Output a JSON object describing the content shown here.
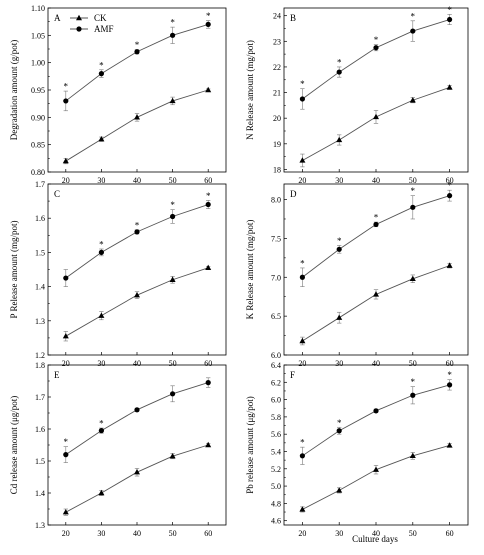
{
  "figure": {
    "xlabel": "Culture days",
    "legend": [
      {
        "label": "CK",
        "marker": "triangle"
      },
      {
        "label": "AMF",
        "marker": "circle"
      }
    ]
  },
  "chart_data": [
    {
      "type": "line",
      "panel": "A",
      "x": [
        20,
        30,
        40,
        50,
        60
      ],
      "ylabel": "Degradation amount (g/pot)",
      "ylim": [
        0.8,
        1.1
      ],
      "yticks": [
        0.8,
        0.85,
        0.9,
        0.95,
        1.0,
        1.05,
        1.1
      ],
      "ytick_labels": [
        "0.80",
        "0.85",
        "0.90",
        "0.95",
        "1.00",
        "1.05",
        "1.10"
      ],
      "series": [
        {
          "name": "CK",
          "values": [
            0.82,
            0.86,
            0.9,
            0.93,
            0.95
          ],
          "errors": [
            0.005,
            0.004,
            0.007,
            0.007,
            0.002
          ]
        },
        {
          "name": "AMF",
          "values": [
            0.93,
            0.98,
            1.02,
            1.05,
            1.07
          ],
          "errors": [
            0.018,
            0.007,
            0.004,
            0.015,
            0.007
          ]
        }
      ],
      "significant": [
        true,
        true,
        true,
        true,
        true
      ]
    },
    {
      "type": "line",
      "panel": "B",
      "x": [
        20,
        30,
        40,
        50,
        60
      ],
      "ylabel": "N Release amount (mg/pot)",
      "ylim": [
        17.9,
        24.3
      ],
      "yticks": [
        18,
        19,
        20,
        21,
        22,
        23,
        24
      ],
      "ytick_labels": [
        "18",
        "19",
        "20",
        "21",
        "22",
        "23",
        "24"
      ],
      "series": [
        {
          "name": "CK",
          "values": [
            18.35,
            19.15,
            20.05,
            20.7,
            21.2
          ],
          "errors": [
            0.25,
            0.2,
            0.25,
            0.1,
            0.08
          ]
        },
        {
          "name": "AMF",
          "values": [
            20.75,
            21.8,
            22.75,
            23.4,
            23.85
          ],
          "errors": [
            0.4,
            0.2,
            0.12,
            0.4,
            0.2
          ]
        }
      ],
      "significant": [
        true,
        true,
        true,
        true,
        true
      ]
    },
    {
      "type": "line",
      "panel": "C",
      "x": [
        20,
        30,
        40,
        50,
        60
      ],
      "ylabel": "P Release amount (mg/pot)",
      "ylim": [
        1.2,
        1.7
      ],
      "yticks": [
        1.2,
        1.3,
        1.4,
        1.5,
        1.6,
        1.7
      ],
      "ytick_labels": [
        "1.2",
        "1.3",
        "1.4",
        "1.5",
        "1.6",
        "1.7"
      ],
      "series": [
        {
          "name": "CK",
          "values": [
            1.255,
            1.315,
            1.375,
            1.42,
            1.455
          ],
          "errors": [
            0.014,
            0.012,
            0.01,
            0.01,
            0.004
          ]
        },
        {
          "name": "AMF",
          "values": [
            1.425,
            1.5,
            1.56,
            1.605,
            1.64
          ],
          "errors": [
            0.025,
            0.01,
            0.006,
            0.02,
            0.012
          ]
        }
      ],
      "significant": [
        false,
        true,
        true,
        true,
        true
      ]
    },
    {
      "type": "line",
      "panel": "D",
      "x": [
        20,
        30,
        40,
        50,
        60
      ],
      "ylabel": "K Release amount (mg/pot)",
      "ylim": [
        6.0,
        8.2
      ],
      "yticks": [
        6.0,
        6.5,
        7.0,
        7.5,
        8.0
      ],
      "ytick_labels": [
        "6.0",
        "6.5",
        "7.0",
        "7.5",
        "8.0"
      ],
      "series": [
        {
          "name": "CK",
          "values": [
            6.18,
            6.48,
            6.78,
            6.98,
            7.15
          ],
          "errors": [
            0.05,
            0.07,
            0.06,
            0.05,
            0.03
          ]
        },
        {
          "name": "AMF",
          "values": [
            7.0,
            7.36,
            7.68,
            7.9,
            8.05
          ],
          "errors": [
            0.12,
            0.05,
            0.03,
            0.15,
            0.07
          ]
        }
      ],
      "significant": [
        true,
        true,
        true,
        true,
        true
      ]
    },
    {
      "type": "line",
      "panel": "E",
      "x": [
        20,
        30,
        40,
        50,
        60
      ],
      "ylabel": "Cd release amount (μg/pot)",
      "ylim": [
        1.3,
        1.8
      ],
      "yticks": [
        1.3,
        1.4,
        1.5,
        1.6,
        1.7,
        1.8
      ],
      "ytick_labels": [
        "1.3",
        "1.4",
        "1.5",
        "1.6",
        "1.7",
        "1.8"
      ],
      "series": [
        {
          "name": "CK",
          "values": [
            1.34,
            1.4,
            1.465,
            1.515,
            1.55
          ],
          "errors": [
            0.01,
            0.008,
            0.012,
            0.008,
            0.005
          ]
        },
        {
          "name": "AMF",
          "values": [
            1.52,
            1.595,
            1.66,
            1.71,
            1.745
          ],
          "errors": [
            0.025,
            0.008,
            0.005,
            0.025,
            0.015
          ]
        }
      ],
      "significant": [
        true,
        true,
        false,
        false,
        false
      ]
    },
    {
      "type": "line",
      "panel": "F",
      "x": [
        20,
        30,
        40,
        50,
        60
      ],
      "ylabel": "Pb release amount (μg/pot)",
      "ylim": [
        4.55,
        6.4
      ],
      "yticks": [
        4.6,
        4.8,
        5.0,
        5.2,
        5.4,
        5.6,
        5.8,
        6.0,
        6.2,
        6.4
      ],
      "ytick_labels": [
        "4.6",
        "4.8",
        "5.0",
        "5.2",
        "5.4",
        "5.6",
        "5.8",
        "6.0",
        "6.2",
        "6.4"
      ],
      "series": [
        {
          "name": "CK",
          "values": [
            4.73,
            4.95,
            5.19,
            5.35,
            5.47
          ],
          "errors": [
            0.03,
            0.03,
            0.05,
            0.04,
            0.02
          ]
        },
        {
          "name": "AMF",
          "values": [
            5.35,
            5.64,
            5.87,
            6.05,
            6.17
          ],
          "errors": [
            0.1,
            0.04,
            0.02,
            0.1,
            0.06
          ]
        }
      ],
      "significant": [
        true,
        true,
        false,
        true,
        true
      ]
    }
  ]
}
